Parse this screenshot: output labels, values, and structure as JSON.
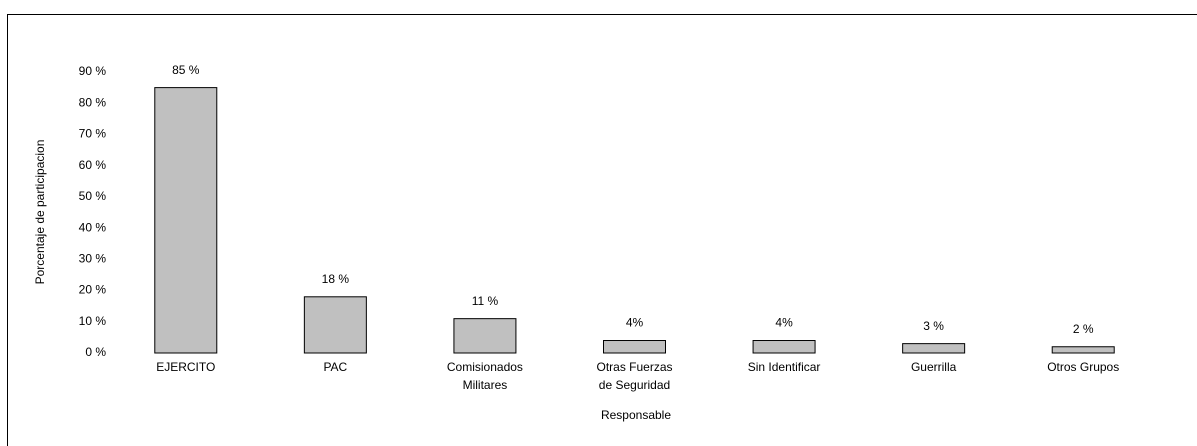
{
  "chart_data": {
    "type": "bar",
    "x_label": "Responsable",
    "y_label": "Porcentaje de participacion",
    "categories": [
      "EJERCITO",
      "PAC",
      "Comisionados Militares",
      "Otras Fuerzas de Seguridad",
      "Sin Identificar",
      "Guerrilla",
      "Otros Grupos"
    ],
    "values": [
      85,
      18,
      11,
      4,
      4,
      3,
      2
    ],
    "value_labels": [
      "85 %",
      "18 %",
      "11 %",
      "4%",
      "4%",
      "3 %",
      "2 %"
    ],
    "color": "#c0c0c0",
    "ylim": [
      0,
      90
    ],
    "yticks": [
      {
        "value": 0,
        "label": "0 %"
      },
      {
        "value": 10,
        "label": "10 %"
      },
      {
        "value": 20,
        "label": "20 %"
      },
      {
        "value": 30,
        "label": "30 %"
      },
      {
        "value": 40,
        "label": "40 %"
      },
      {
        "value": 50,
        "label": "50 %"
      },
      {
        "value": 60,
        "label": "60 %"
      },
      {
        "value": 70,
        "label": "70 %"
      },
      {
        "value": 80,
        "label": "80 %"
      },
      {
        "value": 90,
        "label": "90 %"
      }
    ],
    "grid": false
  }
}
